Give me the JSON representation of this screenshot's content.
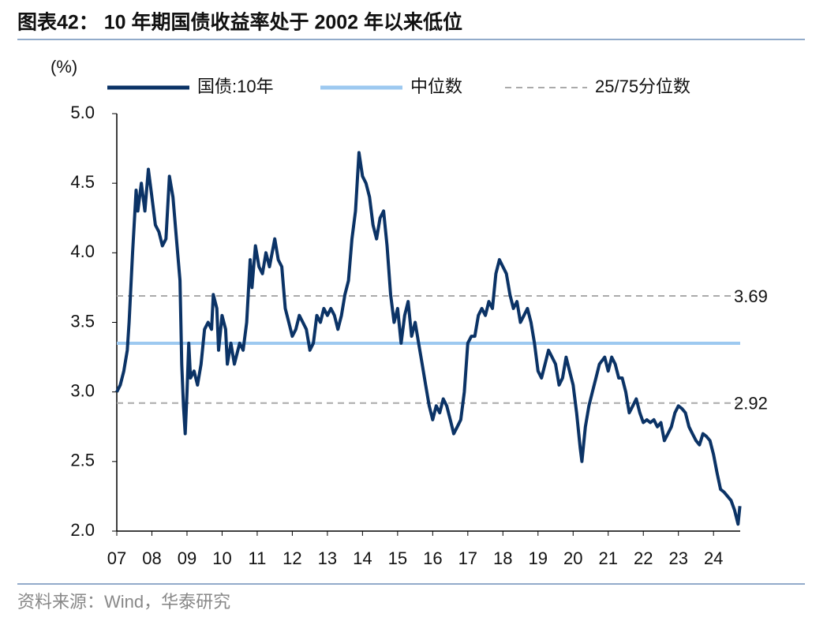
{
  "chart_data": {
    "type": "line",
    "title": "图表42：  10 年期国债收益率处于 2002 年以来低位",
    "y_unit": "(%)",
    "source": "资料来源：Wind，华泰研究",
    "x": [
      2007.0,
      2007.1,
      2007.2,
      2007.3,
      2007.35,
      2007.45,
      2007.55,
      2007.6,
      2007.7,
      2007.8,
      2007.9,
      2008.0,
      2008.1,
      2008.2,
      2008.3,
      2008.4,
      2008.5,
      2008.6,
      2008.7,
      2008.8,
      2008.85,
      2008.9,
      2008.95,
      2009.0,
      2009.05,
      2009.1,
      2009.2,
      2009.3,
      2009.4,
      2009.5,
      2009.6,
      2009.7,
      2009.75,
      2009.85,
      2009.9,
      2010.0,
      2010.1,
      2010.15,
      2010.25,
      2010.35,
      2010.5,
      2010.6,
      2010.7,
      2010.8,
      2010.85,
      2010.95,
      2011.05,
      2011.15,
      2011.25,
      2011.35,
      2011.5,
      2011.6,
      2011.7,
      2011.8,
      2011.9,
      2012.0,
      2012.1,
      2012.2,
      2012.3,
      2012.4,
      2012.5,
      2012.6,
      2012.7,
      2012.8,
      2012.9,
      2013.0,
      2013.1,
      2013.2,
      2013.3,
      2013.4,
      2013.5,
      2013.6,
      2013.7,
      2013.8,
      2013.9,
      2014.0,
      2014.1,
      2014.2,
      2014.3,
      2014.4,
      2014.5,
      2014.6,
      2014.7,
      2014.8,
      2014.9,
      2015.0,
      2015.1,
      2015.2,
      2015.3,
      2015.4,
      2015.5,
      2015.6,
      2015.7,
      2015.8,
      2015.9,
      2016.0,
      2016.1,
      2016.2,
      2016.3,
      2016.4,
      2016.5,
      2016.6,
      2016.7,
      2016.8,
      2016.9,
      2017.0,
      2017.1,
      2017.2,
      2017.3,
      2017.4,
      2017.5,
      2017.6,
      2017.7,
      2017.8,
      2017.9,
      2018.0,
      2018.1,
      2018.2,
      2018.3,
      2018.4,
      2018.5,
      2018.6,
      2018.7,
      2018.8,
      2018.9,
      2019.0,
      2019.1,
      2019.2,
      2019.3,
      2019.4,
      2019.5,
      2019.6,
      2019.7,
      2019.8,
      2019.9,
      2020.0,
      2020.1,
      2020.2,
      2020.25,
      2020.35,
      2020.45,
      2020.55,
      2020.65,
      2020.75,
      2020.9,
      2021.0,
      2021.1,
      2021.2,
      2021.3,
      2021.4,
      2021.5,
      2021.6,
      2021.7,
      2021.8,
      2021.9,
      2022.0,
      2022.1,
      2022.2,
      2022.3,
      2022.4,
      2022.5,
      2022.6,
      2022.7,
      2022.8,
      2022.9,
      2023.0,
      2023.1,
      2023.2,
      2023.3,
      2023.4,
      2023.5,
      2023.6,
      2023.7,
      2023.8,
      2023.9,
      2024.0,
      2024.1,
      2024.2,
      2024.3,
      2024.4,
      2024.5,
      2024.6,
      2024.7,
      2024.75
    ],
    "series": [
      {
        "name": "国债:10年",
        "color": "#0b3366",
        "values": [
          3.0,
          3.05,
          3.15,
          3.3,
          3.5,
          4.0,
          4.45,
          4.3,
          4.5,
          4.3,
          4.6,
          4.4,
          4.2,
          4.15,
          4.05,
          4.1,
          4.55,
          4.4,
          4.1,
          3.8,
          3.2,
          2.9,
          2.7,
          3.0,
          3.35,
          3.1,
          3.15,
          3.05,
          3.2,
          3.45,
          3.5,
          3.45,
          3.7,
          3.6,
          3.3,
          3.55,
          3.45,
          3.2,
          3.35,
          3.2,
          3.35,
          3.3,
          3.5,
          3.95,
          3.75,
          4.05,
          3.9,
          3.85,
          4.0,
          3.9,
          4.1,
          3.95,
          3.9,
          3.6,
          3.5,
          3.4,
          3.45,
          3.55,
          3.5,
          3.45,
          3.3,
          3.35,
          3.55,
          3.5,
          3.6,
          3.55,
          3.6,
          3.55,
          3.45,
          3.55,
          3.7,
          3.8,
          4.1,
          4.3,
          4.72,
          4.55,
          4.5,
          4.4,
          4.2,
          4.1,
          4.25,
          4.3,
          4.05,
          3.7,
          3.5,
          3.6,
          3.35,
          3.55,
          3.65,
          3.4,
          3.5,
          3.35,
          3.2,
          3.05,
          2.9,
          2.8,
          2.9,
          2.85,
          2.95,
          2.9,
          2.8,
          2.7,
          2.75,
          2.8,
          3.0,
          3.35,
          3.4,
          3.4,
          3.55,
          3.6,
          3.55,
          3.65,
          3.6,
          3.85,
          3.95,
          3.9,
          3.85,
          3.7,
          3.6,
          3.65,
          3.5,
          3.55,
          3.6,
          3.5,
          3.35,
          3.15,
          3.1,
          3.2,
          3.3,
          3.25,
          3.2,
          3.05,
          3.1,
          3.25,
          3.15,
          3.05,
          2.85,
          2.6,
          2.5,
          2.75,
          2.9,
          3.0,
          3.1,
          3.2,
          3.25,
          3.15,
          3.25,
          3.2,
          3.1,
          3.1,
          3.0,
          2.85,
          2.9,
          2.95,
          2.85,
          2.78,
          2.8,
          2.78,
          2.8,
          2.75,
          2.78,
          2.65,
          2.7,
          2.75,
          2.85,
          2.9,
          2.88,
          2.85,
          2.75,
          2.7,
          2.65,
          2.62,
          2.7,
          2.68,
          2.65,
          2.55,
          2.42,
          2.3,
          2.28,
          2.25,
          2.22,
          2.15,
          2.05,
          2.18
        ]
      }
    ],
    "median": {
      "name": "中位数",
      "color": "#9dc9f0",
      "value": 3.35
    },
    "quantiles": {
      "name": "25/75分位数",
      "color": "#aaaaaa",
      "values": [
        3.69,
        2.92
      ]
    },
    "xlim": [
      2007,
      2024.76
    ],
    "xticks": [
      {
        "value": 2007,
        "label": "07"
      },
      {
        "value": 2008,
        "label": "08"
      },
      {
        "value": 2009,
        "label": "09"
      },
      {
        "value": 2010,
        "label": "10"
      },
      {
        "value": 2011,
        "label": "11"
      },
      {
        "value": 2012,
        "label": "12"
      },
      {
        "value": 2013,
        "label": "13"
      },
      {
        "value": 2014,
        "label": "14"
      },
      {
        "value": 2015,
        "label": "15"
      },
      {
        "value": 2016,
        "label": "16"
      },
      {
        "value": 2017,
        "label": "17"
      },
      {
        "value": 2018,
        "label": "18"
      },
      {
        "value": 2019,
        "label": "19"
      },
      {
        "value": 2020,
        "label": "20"
      },
      {
        "value": 2021,
        "label": "21"
      },
      {
        "value": 2022,
        "label": "22"
      },
      {
        "value": 2023,
        "label": "23"
      },
      {
        "value": 2024,
        "label": "24"
      }
    ],
    "ylim": [
      2,
      5
    ],
    "yticks": [
      {
        "value": 2,
        "label": "2.0"
      },
      2.5,
      {
        "value": 3,
        "label": "3.0"
      },
      3.5,
      {
        "value": 4,
        "label": "4.0"
      },
      4.5,
      {
        "value": 5,
        "label": "5.0"
      }
    ]
  }
}
